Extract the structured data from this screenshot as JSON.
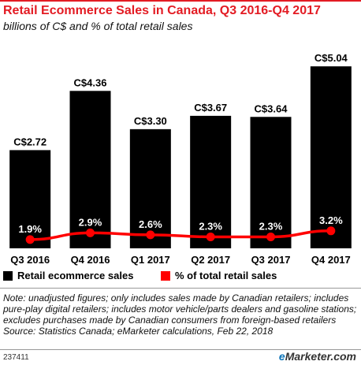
{
  "header": {
    "title": "Retail Ecommerce Sales in Canada, Q3 2016-Q4 2017",
    "subtitle": "billions of C$ and % of total retail sales"
  },
  "chart_data": {
    "type": "bar",
    "categories": [
      "Q3 2016",
      "Q4 2016",
      "Q1 2017",
      "Q2 2017",
      "Q3 2017",
      "Q4 2017"
    ],
    "series": [
      {
        "name": "Retail ecommerce sales",
        "type": "bar",
        "values": [
          2.72,
          4.36,
          3.3,
          3.67,
          3.64,
          5.04
        ],
        "labels": [
          "C$2.72",
          "C$4.36",
          "C$3.30",
          "C$3.67",
          "C$3.64",
          "C$5.04"
        ],
        "color": "#000000"
      },
      {
        "name": "% of total retail sales",
        "type": "line",
        "values": [
          1.9,
          2.9,
          2.6,
          2.3,
          2.3,
          3.2
        ],
        "labels": [
          "1.9%",
          "2.9%",
          "2.6%",
          "2.3%",
          "2.3%",
          "3.2%"
        ],
        "color": "#ff0000"
      }
    ],
    "legend_position": "bottom-left",
    "grid": false
  },
  "legend": {
    "bars": "Retail ecommerce sales",
    "line": "% of total retail sales"
  },
  "note": {
    "text": "Note: unadjusted figures; only includes sales made by Canadian retailers; includes pure-play digital retailers; includes motor vehicle/parts dealers and gasoline stations; excludes purchases made by Canadian consumers from foreign-based retailers",
    "source": "Source: Statistics Canada; eMarketer calculations, Feb 22, 2018"
  },
  "footer": {
    "id": "237411",
    "brand_prefix": "e",
    "brand_rest": "Marketer",
    "brand_suffix": ".com"
  }
}
